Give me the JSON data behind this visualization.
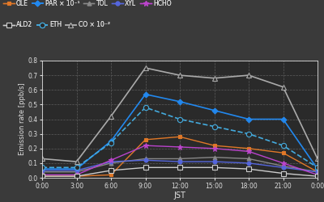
{
  "background_color": "#3a3a3a",
  "plot_bg_color": "#2a2a2a",
  "text_color": "#e0e0e0",
  "grid_color": "#606060",
  "xlabel": "JST",
  "ylabel": "Emission rate [ppb/s]",
  "ylim": [
    0.0,
    0.8
  ],
  "yticks": [
    0.0,
    0.1,
    0.2,
    0.3,
    0.4,
    0.5,
    0.6,
    0.7,
    0.8
  ],
  "xtick_labels": [
    "0:00",
    "3:00",
    "6:00",
    "9:00",
    "12:00",
    "15:00",
    "18:00",
    "21:00",
    "0:00"
  ],
  "hours": [
    0,
    3,
    6,
    9,
    12,
    15,
    18,
    21,
    24
  ],
  "legend_row1": [
    "OLE",
    "PAR × 10⁻¹",
    "TOL",
    "XYL",
    "HCHO"
  ],
  "legend_row2": [
    "ALD2",
    "ETH",
    "CO × 10⁻²"
  ],
  "series": [
    {
      "name": "OLE",
      "label": "OLE",
      "color": "#e07828",
      "marker": "s",
      "mfc": "#e07828",
      "mec": "#e07828",
      "linestyle": "-",
      "linewidth": 1.0,
      "markersize": 3.5,
      "data": [
        0.01,
        0.01,
        0.02,
        0.26,
        0.28,
        0.22,
        0.2,
        0.17,
        0.04
      ]
    },
    {
      "name": "PAR",
      "label": "PAR × 10⁻¹",
      "color": "#2288ee",
      "marker": "D",
      "mfc": "#2288ee",
      "mec": "#2288ee",
      "linestyle": "-",
      "linewidth": 1.2,
      "markersize": 3.5,
      "data": [
        0.06,
        0.06,
        0.25,
        0.57,
        0.52,
        0.46,
        0.4,
        0.4,
        0.06
      ]
    },
    {
      "name": "TOL",
      "label": "TOL",
      "color": "#888888",
      "marker": "^",
      "mfc": "#888888",
      "mec": "#888888",
      "linestyle": "-",
      "linewidth": 1.0,
      "markersize": 3.5,
      "data": [
        0.04,
        0.04,
        0.1,
        0.13,
        0.13,
        0.14,
        0.13,
        0.08,
        0.04
      ]
    },
    {
      "name": "XYL",
      "label": "XYL",
      "color": "#5566dd",
      "marker": "o",
      "mfc": "#5566dd",
      "mec": "#5566dd",
      "linestyle": "-",
      "linewidth": 1.0,
      "markersize": 3.5,
      "data": [
        0.05,
        0.05,
        0.11,
        0.12,
        0.11,
        0.11,
        0.1,
        0.07,
        0.04
      ]
    },
    {
      "name": "HCHO",
      "label": "HCHO",
      "color": "#bb44cc",
      "marker": "*",
      "mfc": "#bb44cc",
      "mec": "#bb44cc",
      "linestyle": "-",
      "linewidth": 1.0,
      "markersize": 5,
      "data": [
        0.02,
        0.02,
        0.12,
        0.22,
        0.21,
        0.2,
        0.18,
        0.1,
        0.02
      ]
    },
    {
      "name": "ALD2",
      "label": "ALD2",
      "color": "#cccccc",
      "marker": "s",
      "mfc": "#2a2a2a",
      "mec": "#cccccc",
      "linestyle": "-",
      "linewidth": 1.0,
      "markersize": 4,
      "data": [
        0.01,
        0.01,
        0.05,
        0.07,
        0.07,
        0.07,
        0.06,
        0.03,
        0.01
      ]
    },
    {
      "name": "ETH",
      "label": "ETH",
      "color": "#44aadd",
      "marker": "o",
      "mfc": "#2a2a2a",
      "mec": "#44aadd",
      "linestyle": "--",
      "linewidth": 1.2,
      "markersize": 4.5,
      "data": [
        0.07,
        0.07,
        0.24,
        0.48,
        0.4,
        0.35,
        0.3,
        0.22,
        0.07
      ]
    },
    {
      "name": "CO",
      "label": "CO × 10⁻²",
      "color": "#aaaaaa",
      "marker": "^",
      "mfc": "#2a2a2a",
      "mec": "#aaaaaa",
      "linestyle": "-",
      "linewidth": 1.2,
      "markersize": 5,
      "data": [
        0.13,
        0.11,
        0.42,
        0.75,
        0.7,
        0.68,
        0.7,
        0.62,
        0.13
      ]
    }
  ]
}
